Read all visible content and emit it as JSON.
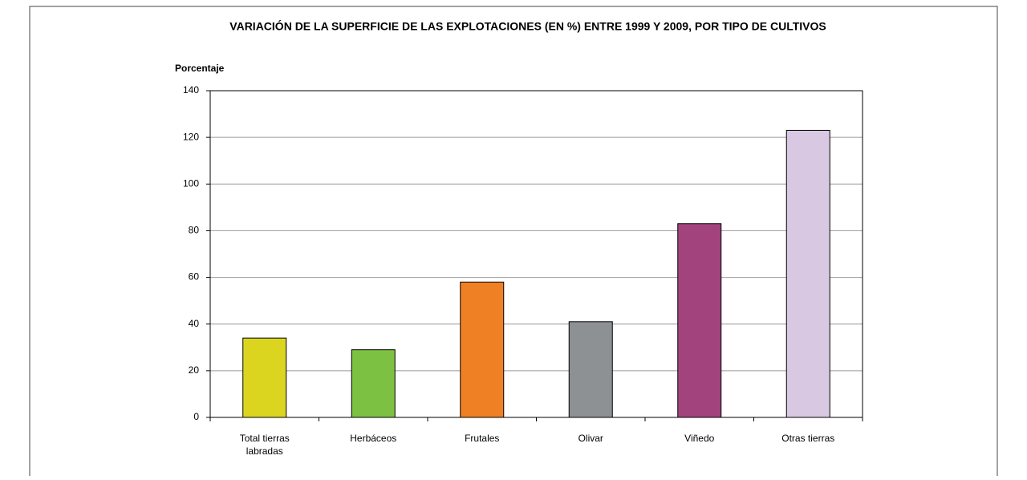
{
  "chart_data": {
    "type": "bar",
    "title": "VARIACIÓN DE LA SUPERFICIE DE LAS EXPLOTACIONES (EN %) ENTRE 1999 Y 2009, POR TIPO DE CULTIVOS",
    "y_label": "Porcentaje",
    "categories": [
      "Total tierras labradas",
      "Herbáceos",
      "Frutales",
      "Olivar",
      "Viñedo",
      "Otras tierras"
    ],
    "values": [
      34,
      29,
      58,
      41,
      83,
      123
    ],
    "colors": [
      "#dcd520",
      "#7dc142",
      "#f08024",
      "#8e9194",
      "#a3437e",
      "#d8c8e2"
    ],
    "ylim": [
      0,
      140
    ],
    "yticks": [
      0,
      20,
      40,
      60,
      80,
      100,
      120,
      140
    ],
    "grid": true
  }
}
